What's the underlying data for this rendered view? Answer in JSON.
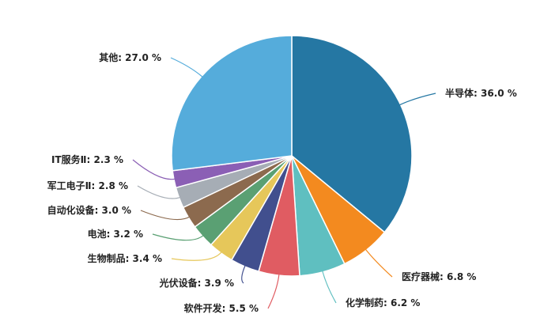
{
  "chart_data": {
    "type": "pie",
    "unit": "%",
    "slices": [
      {
        "label": "半导体",
        "value": 36.0,
        "color": "#2577a3",
        "display": "半导体: 36.0 %"
      },
      {
        "label": "医疗器械",
        "value": 6.8,
        "color": "#f38a1f",
        "display": "医疗器械: 6.8 %"
      },
      {
        "label": "化学制药",
        "value": 6.2,
        "color": "#5fbfc0",
        "display": "化学制药: 6.2 %"
      },
      {
        "label": "软件开发",
        "value": 5.5,
        "color": "#e05c62",
        "display": "软件开发: 5.5 %"
      },
      {
        "label": "光伏设备",
        "value": 3.9,
        "color": "#414f8e",
        "display": "光伏设备: 3.9 %"
      },
      {
        "label": "生物制品",
        "value": 3.4,
        "color": "#e6c75a",
        "display": "生物制品: 3.4 %"
      },
      {
        "label": "电池",
        "value": 3.2,
        "color": "#5aa073",
        "display": "电池: 3.2 %"
      },
      {
        "label": "自动化设备",
        "value": 3.0,
        "color": "#8c6a4e",
        "display": "自动化设备: 3.0 %"
      },
      {
        "label": "军工电子Ⅱ",
        "value": 2.8,
        "color": "#a6adb5",
        "display": "军工电子Ⅱ: 2.8 %"
      },
      {
        "label": "IT服务Ⅱ",
        "value": 2.3,
        "color": "#8b5fb5",
        "display": "IT服务Ⅱ: 2.3 %"
      },
      {
        "label": "其他",
        "value": 27.0,
        "color": "#55acdb",
        "display": "其他: 27.0 %"
      }
    ]
  }
}
